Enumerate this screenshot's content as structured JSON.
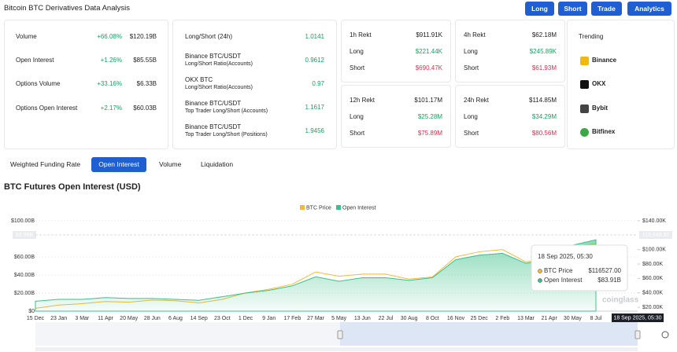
{
  "header": {
    "title": "Bitcoin BTC Derivatives Data Analysis",
    "buttons": [
      "Long",
      "Short",
      "Trade",
      "Analytics"
    ]
  },
  "stats": [
    {
      "label": "Volume",
      "change": "+66.08%",
      "value": "$120.19B"
    },
    {
      "label": "Open Interest",
      "change": "+1.26%",
      "value": "$85.55B"
    },
    {
      "label": "Options Volume",
      "change": "+33.16%",
      "value": "$6.33B"
    },
    {
      "label": "Options Open Interest",
      "change": "+2.17%",
      "value": "$60.03B"
    }
  ],
  "ratios": [
    {
      "label": "Long/Short (24h)",
      "value": "1.0141"
    },
    {
      "label": "Binance BTC/USDT",
      "sub": "Long/Short Ratio(Accounts)",
      "value": "0.9612"
    },
    {
      "label": "OKX BTC",
      "sub": "Long/Short Ratio(Accounts)",
      "value": "0.97"
    },
    {
      "label": "Binance BTC/USDT",
      "sub": "Top Trader Long/Short (Accounts)",
      "value": "1.1617"
    },
    {
      "label": "Binance BTC/USDT",
      "sub": "Top Trader Long/Short (Positions)",
      "value": "1.9456"
    }
  ],
  "rekt": [
    {
      "period": "1h Rekt",
      "total": "$911.91K",
      "long_label": "Long",
      "long": "$221.44K",
      "short_label": "Short",
      "short": "$690.47K"
    },
    {
      "period": "4h Rekt",
      "total": "$62.18M",
      "long_label": "Long",
      "long": "$245.89K",
      "short_label": "Short",
      "short": "$61.93M"
    },
    {
      "period": "12h Rekt",
      "total": "$101.17M",
      "long_label": "Long",
      "long": "$25.28M",
      "short_label": "Short",
      "short": "$75.89M"
    },
    {
      "period": "24h Rekt",
      "total": "$114.85M",
      "long_label": "Long",
      "long": "$34.29M",
      "short_label": "Short",
      "short": "$80.56M"
    }
  ],
  "trending": {
    "title": "Trending",
    "items": [
      "Binance",
      "OKX",
      "Bybit",
      "Bitfinex"
    ]
  },
  "tabs": {
    "items": [
      "Weighted Funding Rate",
      "Open Interest",
      "Volume",
      "Liquidation"
    ],
    "active": 1
  },
  "chart_data": {
    "type": "area",
    "title": "BTC Futures Open Interest (USD)",
    "categories": [
      "15 Dec",
      "23 Jan",
      "3 Mar",
      "11 Apr",
      "20 May",
      "28 Jun",
      "6 Aug",
      "14 Sep",
      "23 Oct",
      "1 Dec",
      "9 Jan",
      "17 Feb",
      "27 Mar",
      "5 May",
      "13 Jun",
      "22 Jul",
      "30 Aug",
      "8 Oct",
      "16 Nov",
      "25 Dec",
      "2 Feb",
      "13 Mar",
      "21 Apr",
      "30 May",
      "8 Jul"
    ],
    "series": [
      {
        "name": "BTC Price",
        "color": "#f5b93a",
        "axis": "y2",
        "values": [
          18500,
          23000,
          25000,
          28000,
          27000,
          30000,
          29000,
          26000,
          31000,
          40000,
          45000,
          52000,
          69000,
          63000,
          66000,
          66000,
          59000,
          62000,
          90000,
          97000,
          100000,
          83000,
          87000,
          105000,
          108000
        ]
      },
      {
        "name": "Open Interest",
        "color": "#3cc08a",
        "values": [
          11,
          13,
          13,
          15,
          14,
          14,
          13,
          12,
          16,
          20,
          23,
          28,
          38,
          33,
          37,
          37,
          34,
          37,
          57,
          62,
          64,
          53,
          57,
          73,
          79
        ]
      }
    ],
    "ylim": [
      0,
      100
    ],
    "yticks": [
      {
        "value": 0,
        "label": "$0"
      },
      {
        "value": 20,
        "label": "$20.00B"
      },
      {
        "value": 40,
        "label": "$40.00B"
      },
      {
        "value": 60,
        "label": "$60.00B"
      },
      {
        "value": 100,
        "label": "$100.00B"
      }
    ],
    "y2lim": [
      14600,
      140000
    ],
    "y2ticks": [
      {
        "value": 20000,
        "label": "$20.00K"
      },
      {
        "value": 40000,
        "label": "$40.00K"
      },
      {
        "value": 60000,
        "label": "$60.00K"
      },
      {
        "value": 80000,
        "label": "$80.00K"
      },
      {
        "value": 100000,
        "label": "$100.00K"
      },
      {
        "value": 140000,
        "label": "$140.00K"
      }
    ],
    "current_labels": {
      "y": "83.98B",
      "y2": "119,940.92"
    },
    "tooltip": {
      "date": "18 Sep 2025, 05:30",
      "rows": [
        {
          "name": "BTC Price",
          "value": "$116527.00"
        },
        {
          "name": "Open Interest",
          "value": "$83.91B"
        }
      ]
    },
    "cursor_label": "18 Sep 2025, 05:30",
    "watermark": "coinglass"
  }
}
